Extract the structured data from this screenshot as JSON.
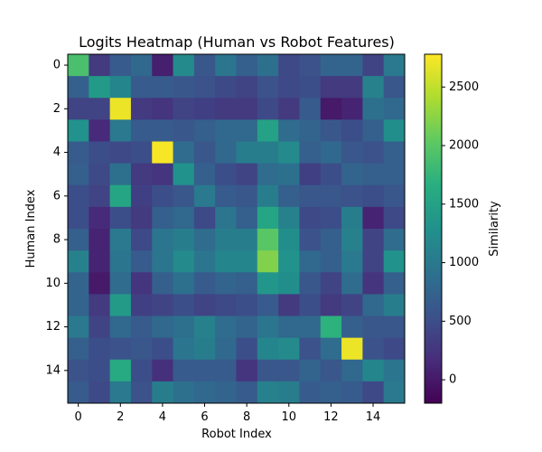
{
  "chart_data": {
    "type": "heatmap",
    "title": "Logits Heatmap (Human vs Robot Features)",
    "xlabel": "Robot Index",
    "ylabel": "Human Index",
    "colorbar_label": "Similarity",
    "colormap": "viridis",
    "x_ticks": [
      0,
      2,
      4,
      6,
      8,
      10,
      12,
      14
    ],
    "y_ticks": [
      0,
      2,
      4,
      6,
      8,
      10,
      12,
      14
    ],
    "colorbar_ticks": [
      0,
      500,
      1000,
      1500,
      2000,
      2500
    ],
    "value_range": [
      -200,
      2780
    ],
    "grid": false,
    "matrix": [
      [
        1900,
        300,
        650,
        800,
        50,
        1200,
        600,
        950,
        700,
        900,
        450,
        550,
        750,
        750,
        400,
        1000
      ],
      [
        700,
        1400,
        1150,
        650,
        650,
        600,
        550,
        450,
        400,
        550,
        450,
        500,
        300,
        300,
        1100,
        600
      ],
      [
        400,
        400,
        2700,
        300,
        250,
        400,
        350,
        300,
        300,
        450,
        300,
        650,
        0,
        100,
        900,
        800
      ],
      [
        1300,
        150,
        1000,
        650,
        650,
        600,
        700,
        800,
        800,
        1500,
        850,
        750,
        600,
        500,
        700,
        1250
      ],
      [
        650,
        500,
        450,
        500,
        2750,
        850,
        600,
        800,
        1050,
        1050,
        1200,
        700,
        800,
        600,
        550,
        700
      ],
      [
        700,
        450,
        900,
        300,
        250,
        1300,
        700,
        500,
        400,
        850,
        900,
        350,
        500,
        750,
        700,
        700
      ],
      [
        500,
        400,
        1550,
        350,
        500,
        600,
        1000,
        650,
        600,
        1050,
        700,
        600,
        600,
        550,
        500,
        600
      ],
      [
        500,
        150,
        500,
        300,
        700,
        800,
        450,
        950,
        700,
        1550,
        1100,
        450,
        500,
        1050,
        100,
        450
      ],
      [
        700,
        100,
        1000,
        450,
        950,
        1050,
        850,
        1050,
        1050,
        2000,
        1250,
        550,
        700,
        1100,
        400,
        850
      ],
      [
        1100,
        100,
        950,
        650,
        950,
        1200,
        950,
        1150,
        1150,
        2200,
        1300,
        800,
        700,
        1000,
        400,
        1300
      ],
      [
        750,
        0,
        850,
        250,
        700,
        900,
        650,
        750,
        700,
        1350,
        1250,
        600,
        400,
        850,
        250,
        700
      ],
      [
        750,
        300,
        1400,
        350,
        400,
        500,
        400,
        450,
        500,
        650,
        300,
        500,
        300,
        400,
        800,
        1050
      ],
      [
        1000,
        400,
        800,
        650,
        800,
        900,
        1100,
        850,
        750,
        950,
        800,
        800,
        1700,
        700,
        600,
        600
      ],
      [
        700,
        500,
        550,
        600,
        500,
        950,
        1050,
        800,
        500,
        1150,
        1200,
        550,
        850,
        2700,
        550,
        450
      ],
      [
        550,
        500,
        1600,
        500,
        200,
        650,
        650,
        650,
        250,
        600,
        600,
        750,
        600,
        800,
        1150,
        950
      ],
      [
        650,
        450,
        1000,
        550,
        1050,
        900,
        800,
        750,
        650,
        1100,
        1050,
        650,
        700,
        650,
        450,
        1000
      ]
    ]
  }
}
